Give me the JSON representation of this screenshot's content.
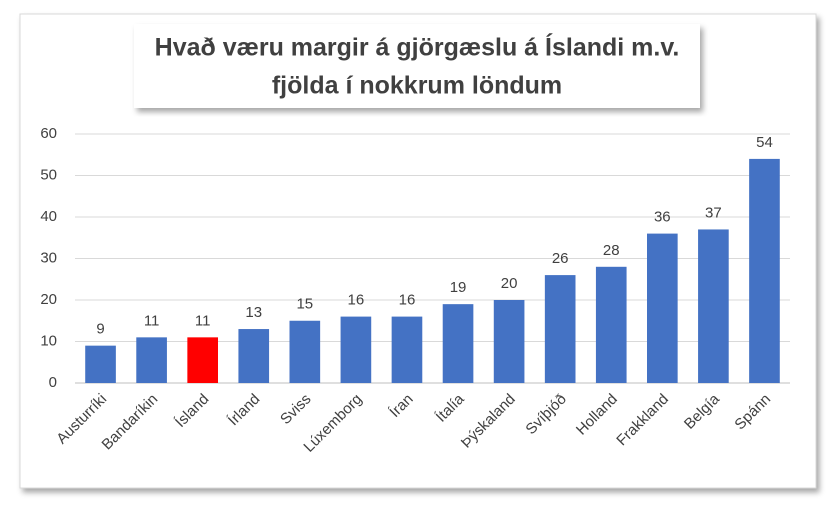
{
  "chart_data": {
    "type": "bar",
    "title": [
      "Hvað væru margir á gjörgæslu á Íslandi m.v.",
      "fjölda í nokkrum löndum"
    ],
    "categories": [
      "Austurríki",
      "Bandaríkin",
      "Ísland",
      "Írland",
      "Sviss",
      "Lúxemborg",
      "Íran",
      "Ítalía",
      "Þýskaland",
      "Svíþjóð",
      "Holland",
      "Frakkland",
      "Belgía",
      "Spánn"
    ],
    "values": [
      9,
      11,
      11,
      13,
      15,
      16,
      16,
      19,
      20,
      26,
      28,
      36,
      37,
      54
    ],
    "colors": [
      "#4472c4",
      "#4472c4",
      "#ff0000",
      "#4472c4",
      "#4472c4",
      "#4472c4",
      "#4472c4",
      "#4472c4",
      "#4472c4",
      "#4472c4",
      "#4472c4",
      "#4472c4",
      "#4472c4",
      "#4472c4"
    ],
    "ylim": [
      0,
      60
    ],
    "yticks": [
      0,
      10,
      20,
      30,
      40,
      50,
      60
    ],
    "grid": true
  }
}
